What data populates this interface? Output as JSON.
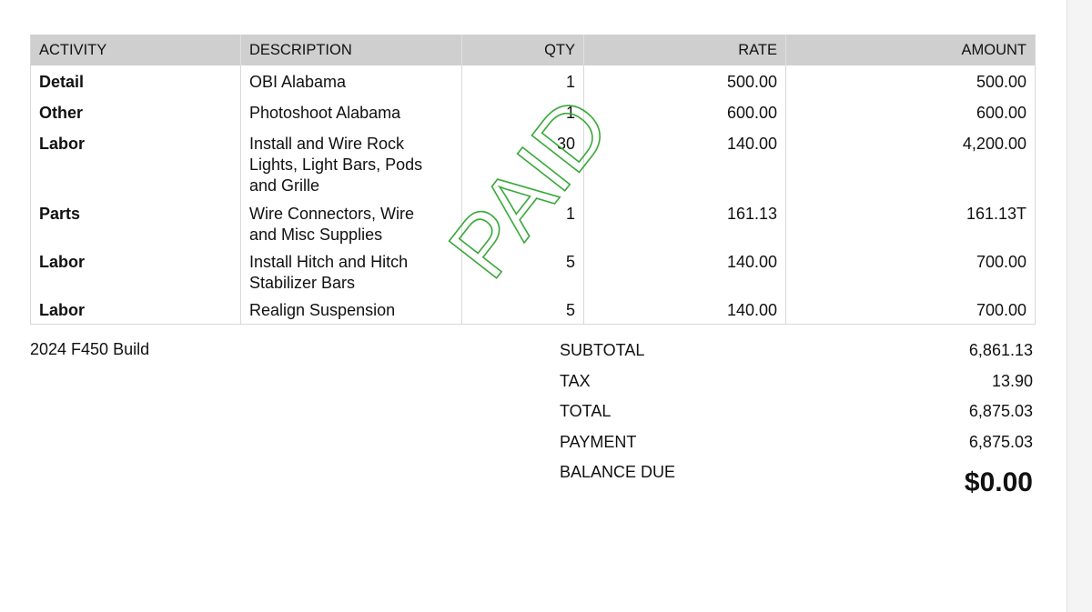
{
  "table": {
    "headers": [
      "ACTIVITY",
      "DESCRIPTION",
      "QTY",
      "RATE",
      "AMOUNT"
    ],
    "rows": [
      {
        "activity": "Detail",
        "description": [
          "OBI Alabama"
        ],
        "qty": "1",
        "rate": "500.00",
        "amount": "500.00"
      },
      {
        "activity": "Other",
        "description": [
          "Photoshoot Alabama"
        ],
        "qty": "1",
        "rate": "600.00",
        "amount": "600.00"
      },
      {
        "activity": "Labor",
        "description": [
          "Install and Wire Rock",
          "Lights, Light Bars, Pods",
          "and Grille"
        ],
        "qty": "30",
        "rate": "140.00",
        "amount": "4,200.00"
      },
      {
        "activity": "Parts",
        "description": [
          "Wire Connectors, Wire",
          "and Misc Supplies"
        ],
        "qty": "1",
        "rate": "161.13",
        "amount": "161.13T"
      },
      {
        "activity": "Labor",
        "description": [
          "Install Hitch and Hitch",
          "Stabilizer Bars"
        ],
        "qty": "5",
        "rate": "140.00",
        "amount": "700.00"
      },
      {
        "activity": "Labor",
        "description": [
          "Realign Suspension"
        ],
        "qty": "5",
        "rate": "140.00",
        "amount": "700.00"
      }
    ]
  },
  "memo": "2024 F450 Build",
  "totals": {
    "subtotal_label": "SUBTOTAL",
    "subtotal": "6,861.13",
    "tax_label": "TAX",
    "tax": "13.90",
    "total_label": "TOTAL",
    "total": "6,875.03",
    "payment_label": "PAYMENT",
    "payment": "6,875.03",
    "balance_label": "BALANCE DUE",
    "balance": "$0.00"
  },
  "stamp": {
    "text": "PAID",
    "color": "#3aa83a"
  }
}
